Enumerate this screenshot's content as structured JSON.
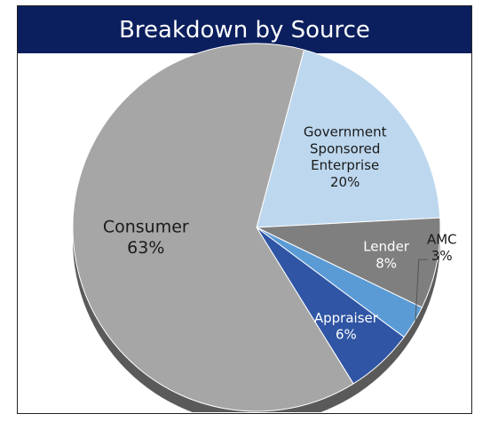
{
  "chart_data": {
    "type": "pie",
    "title": "Breakdown by Source",
    "start_angle_deg": -75,
    "slices": [
      {
        "label": [
          "Government",
          "Sponsored",
          "Enterprise"
        ],
        "value_label": "20%",
        "value": 20,
        "color": "#bdd7ee",
        "text_color": "#1a1a1a"
      },
      {
        "label": [
          "Lender"
        ],
        "value_label": "8%",
        "value": 8,
        "color": "#7f7f7f",
        "text_color": "#ffffff"
      },
      {
        "label": [
          "AMC"
        ],
        "value_label": "3%",
        "value": 3,
        "color": "#5b9bd5",
        "text_color": "#1a1a1a",
        "outside": true
      },
      {
        "label": [
          "Appraiser"
        ],
        "value_label": "6%",
        "value": 6,
        "color": "#2f55a4",
        "text_color": "#ffffff"
      },
      {
        "label": [
          "Consumer"
        ],
        "value_label": "63%",
        "value": 63,
        "color": "#a6a6a6",
        "text_color": "#1a1a1a"
      }
    ]
  }
}
